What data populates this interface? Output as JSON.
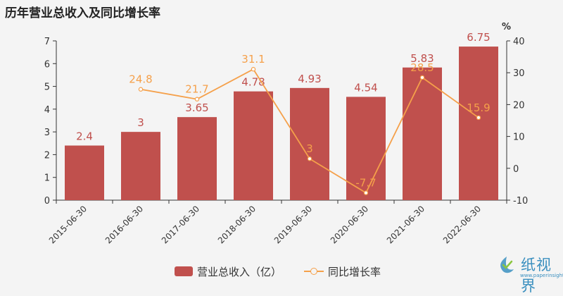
{
  "title": "历年营业总收入及同比增长率",
  "colors": {
    "bar": "#c0504d",
    "line": "#f5a04a",
    "axis": "#333333"
  },
  "legend": {
    "bar_label": "营业总收入（亿）",
    "line_label": "同比增长率"
  },
  "logo": {
    "name": "纸视界",
    "url": "www.paperinsight.net"
  },
  "chart_data": {
    "type": "bar",
    "title": "历年营业总收入及同比增长率",
    "categories": [
      "2015-06-30",
      "2016-06-30",
      "2017-06-30",
      "2018-06-30",
      "2019-06-30",
      "2020-06-30",
      "2021-06-30",
      "2022-06-30"
    ],
    "series": [
      {
        "name": "营业总收入（亿）",
        "type": "bar",
        "axis": "left",
        "values": [
          2.4,
          3,
          3.65,
          4.78,
          4.93,
          4.54,
          5.83,
          6.75
        ],
        "labels": [
          "2.4",
          "3",
          "3.65",
          "4.78",
          "4.93",
          "4.54",
          "5.83",
          "6.75"
        ]
      },
      {
        "name": "同比增长率",
        "type": "line",
        "axis": "right",
        "values": [
          null,
          24.8,
          21.7,
          31.1,
          3,
          -7.7,
          28.5,
          15.9
        ],
        "labels": [
          "",
          "24.8",
          "21.7",
          "31.1",
          "3",
          "-7.7",
          "28.5",
          "15.9"
        ]
      }
    ],
    "y_left": {
      "ylim": [
        0,
        7
      ],
      "ticks": [
        "0",
        "1",
        "2",
        "3",
        "4",
        "5",
        "6",
        "7"
      ]
    },
    "y_right": {
      "unit": "%",
      "ylim": [
        -10,
        40
      ],
      "ticks": [
        "-10",
        "0",
        "10",
        "20",
        "30",
        "40"
      ]
    },
    "legend_position": "bottom"
  }
}
